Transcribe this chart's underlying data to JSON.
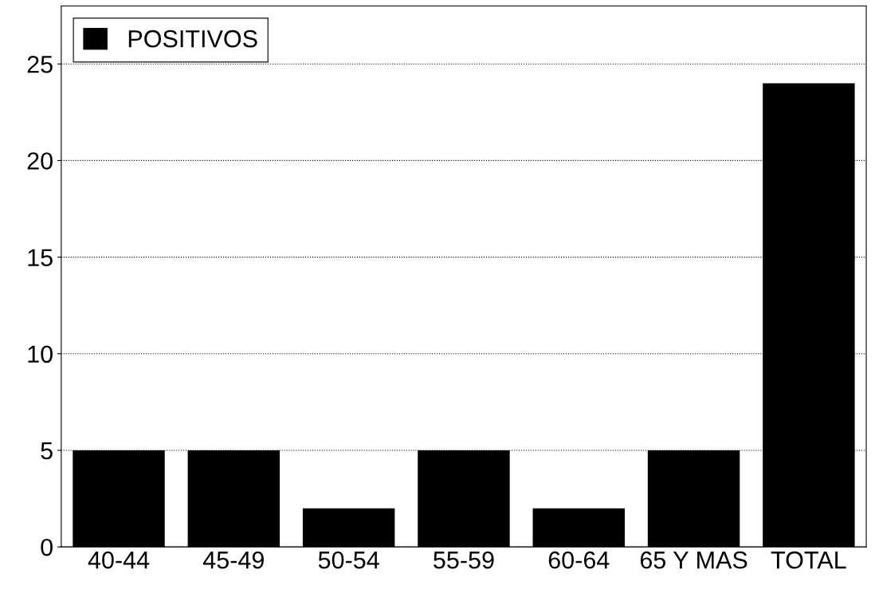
{
  "chart_data": {
    "type": "bar",
    "categories": [
      "40-44",
      "45-49",
      "50-54",
      "55-59",
      "60-64",
      "65 Y MAS",
      "TOTAL"
    ],
    "series": [
      {
        "name": "POSITIVOS",
        "color": "#000000",
        "values": [
          5,
          5,
          2,
          5,
          2,
          5,
          24
        ]
      }
    ],
    "ylim": [
      0,
      28
    ],
    "yticks": [
      0,
      5,
      10,
      15,
      20,
      25
    ],
    "grid": "y",
    "legend": "top left"
  }
}
